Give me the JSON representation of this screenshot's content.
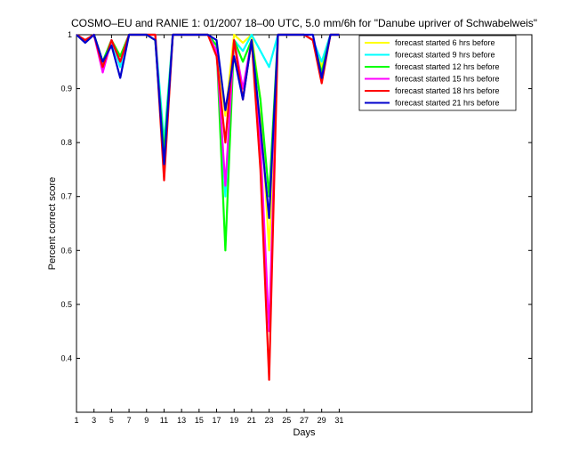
{
  "chart_data": {
    "type": "line",
    "title": "COSMO–EU and RANIE 1: 01/2007 18–00 UTC, 5.0 mm/6h for \"Danube upriver of Schwabelweis\"",
    "xlabel": "Days",
    "ylabel": "Percent correct score",
    "xlim": [
      1,
      53
    ],
    "ylim": [
      0.3,
      1.0
    ],
    "xticks": [
      1,
      3,
      5,
      7,
      9,
      11,
      13,
      15,
      17,
      19,
      21,
      23,
      25,
      27,
      29,
      31
    ],
    "yticks": [
      0.4,
      0.5,
      0.6,
      0.7,
      0.8,
      0.9,
      1
    ],
    "legend_position": "top-right",
    "x": [
      1,
      2,
      3,
      4,
      5,
      6,
      7,
      8,
      9,
      10,
      11,
      12,
      13,
      14,
      15,
      16,
      17,
      18,
      19,
      20,
      21,
      22,
      23,
      24,
      25,
      26,
      27,
      28,
      29,
      30,
      31
    ],
    "series": [
      {
        "name": "forecast started 6 hrs before",
        "color": "#ffff00",
        "values": [
          1.0,
          0.99,
          1.0,
          0.95,
          0.99,
          0.96,
          1.0,
          1.0,
          1.0,
          1.0,
          0.78,
          1.0,
          1.0,
          1.0,
          1.0,
          1.0,
          0.98,
          0.85,
          1.0,
          0.985,
          1.0,
          0.88,
          0.6,
          1.0,
          1.0,
          1.0,
          1.0,
          0.99,
          0.94,
          1.0,
          1.0
        ]
      },
      {
        "name": "forecast started 9 hrs before",
        "color": "#00ffff",
        "values": [
          1.0,
          0.99,
          1.0,
          0.95,
          0.99,
          0.94,
          1.0,
          1.0,
          1.0,
          1.0,
          0.8,
          1.0,
          1.0,
          1.0,
          1.0,
          1.0,
          0.98,
          0.7,
          0.99,
          0.97,
          1.0,
          0.97,
          0.94,
          1.0,
          1.0,
          1.0,
          1.0,
          0.99,
          0.95,
          1.0,
          1.0
        ]
      },
      {
        "name": "forecast started 12 hrs before",
        "color": "#00ff00",
        "values": [
          1.0,
          0.99,
          1.0,
          0.95,
          0.99,
          0.96,
          1.0,
          1.0,
          1.0,
          0.99,
          0.78,
          1.0,
          1.0,
          1.0,
          1.0,
          1.0,
          0.98,
          0.6,
          0.99,
          0.95,
          0.99,
          0.88,
          0.7,
          1.0,
          1.0,
          1.0,
          1.0,
          0.99,
          0.93,
          1.0,
          1.0
        ]
      },
      {
        "name": "forecast started 15 hrs before",
        "color": "#ff00ff",
        "values": [
          1.0,
          0.99,
          1.0,
          0.93,
          0.99,
          0.95,
          1.0,
          1.0,
          1.0,
          1.0,
          0.75,
          1.0,
          1.0,
          1.0,
          1.0,
          1.0,
          0.97,
          0.72,
          0.99,
          0.9,
          0.99,
          0.8,
          0.45,
          1.0,
          1.0,
          1.0,
          1.0,
          0.99,
          0.92,
          1.0,
          1.0
        ]
      },
      {
        "name": "forecast started 18 hrs before",
        "color": "#ff0000",
        "values": [
          1.0,
          0.99,
          1.0,
          0.94,
          0.99,
          0.95,
          1.0,
          1.0,
          1.0,
          1.0,
          0.73,
          1.0,
          1.0,
          1.0,
          1.0,
          1.0,
          0.96,
          0.8,
          0.99,
          0.88,
          0.99,
          0.75,
          0.36,
          1.0,
          1.0,
          1.0,
          1.0,
          0.99,
          0.91,
          1.0,
          1.0
        ]
      },
      {
        "name": "forecast started 21 hrs before",
        "color": "#0000cc",
        "values": [
          1.0,
          0.985,
          1.0,
          0.95,
          0.98,
          0.92,
          1.0,
          1.0,
          1.0,
          0.99,
          0.76,
          1.0,
          1.0,
          1.0,
          1.0,
          1.0,
          0.99,
          0.86,
          0.96,
          0.88,
          0.99,
          0.83,
          0.66,
          1.0,
          1.0,
          1.0,
          1.0,
          1.0,
          0.92,
          1.0,
          1.0
        ]
      }
    ]
  }
}
